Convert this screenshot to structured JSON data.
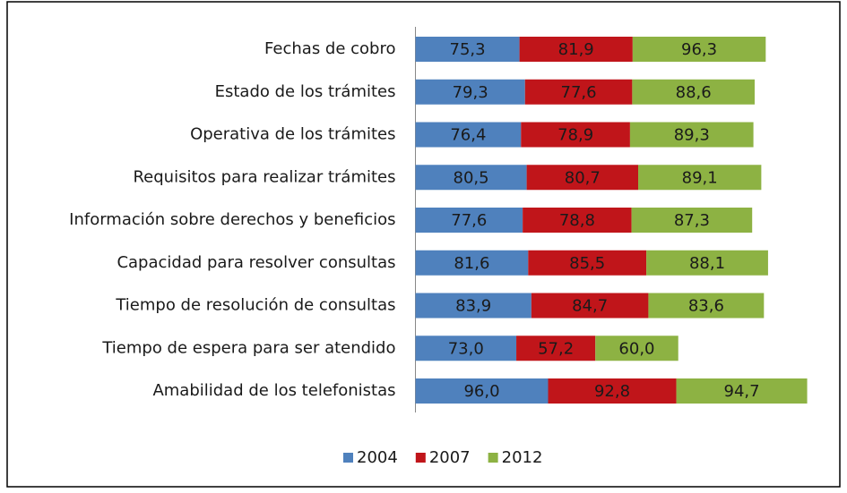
{
  "chart_data": {
    "type": "stacked-bar-horizontal",
    "categories": [
      "Fechas de cobro",
      "Estado de los trámites",
      "Operativa de los trámites",
      "Requisitos para realizar trámites",
      "Información sobre derechos y beneficios",
      "Capacidad para resolver consultas",
      "Tiempo de resolución de consultas",
      "Tiempo de espera para ser atendido",
      "Amabilidad de los telefonistas"
    ],
    "series": [
      {
        "name": "2004",
        "color": "#4f81bd",
        "values": [
          75.3,
          79.3,
          76.4,
          80.5,
          77.6,
          81.6,
          83.9,
          73.0,
          96.0
        ],
        "value_labels": [
          "75,3",
          "79,3",
          "76,4",
          "80,5",
          "77,6",
          "81,6",
          "83,9",
          "73,0",
          "96,0"
        ]
      },
      {
        "name": "2007",
        "color": "#c0151a",
        "values": [
          81.9,
          77.6,
          78.9,
          80.7,
          78.8,
          85.5,
          84.7,
          57.2,
          92.8
        ],
        "value_labels": [
          "81,9",
          "77,6",
          "78,9",
          "80,7",
          "78,8",
          "85,5",
          "84,7",
          "57,2",
          "92,8"
        ]
      },
      {
        "name": "2012",
        "color": "#8db243",
        "values": [
          96.3,
          88.6,
          89.3,
          89.1,
          87.3,
          88.1,
          83.6,
          60.0,
          94.7
        ],
        "value_labels": [
          "96,3",
          "88,6",
          "89,3",
          "89,1",
          "87,3",
          "88,1",
          "83,6",
          "60,0",
          "94,7"
        ]
      }
    ],
    "xlim": [
      0,
      300
    ]
  }
}
